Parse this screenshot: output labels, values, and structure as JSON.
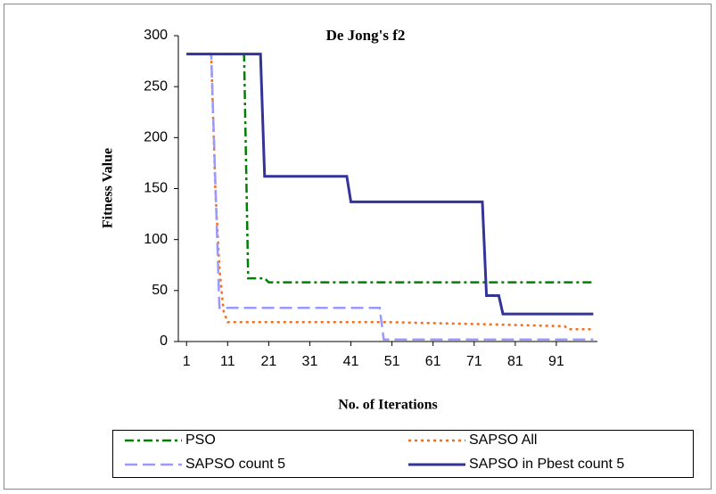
{
  "chart_data": {
    "type": "line",
    "title": "De Jong's f2",
    "x_label": "No. of Iterations",
    "y_label": "Fitness Value",
    "xlim": [
      -1,
      101
    ],
    "xticks": [
      1,
      11,
      21,
      31,
      41,
      51,
      61,
      71,
      81,
      91
    ],
    "ylim": [
      0,
      300
    ],
    "yticks": [
      0,
      50,
      100,
      150,
      200,
      250,
      300
    ],
    "legend": "bottom",
    "series": [
      {
        "name": "PSO",
        "color": "#008000",
        "dash": "dash-dot",
        "x": [
          1,
          15,
          16,
          20,
          21,
          100
        ],
        "values": [
          282,
          282,
          62,
          62,
          58,
          58
        ]
      },
      {
        "name": "SAPSO All",
        "color": "#f07020",
        "dash": "dot",
        "x": [
          1,
          7,
          8,
          9,
          10,
          11,
          50,
          73,
          93,
          94,
          100
        ],
        "values": [
          282,
          282,
          150,
          72,
          30,
          19,
          19,
          17,
          15,
          12,
          12
        ]
      },
      {
        "name": "SAPSO count 5",
        "color": "#9999ff",
        "dash": "dash",
        "x": [
          1,
          7,
          9,
          48,
          49,
          100
        ],
        "values": [
          282,
          282,
          33,
          33,
          2,
          2
        ]
      },
      {
        "name": "SAPSO in Pbest count 5",
        "color": "#333399",
        "dash": "solid",
        "x": [
          1,
          19,
          20,
          40,
          41,
          73,
          74,
          77,
          78,
          100
        ],
        "values": [
          282,
          282,
          162,
          162,
          137,
          137,
          45,
          45,
          27,
          27
        ]
      }
    ]
  }
}
